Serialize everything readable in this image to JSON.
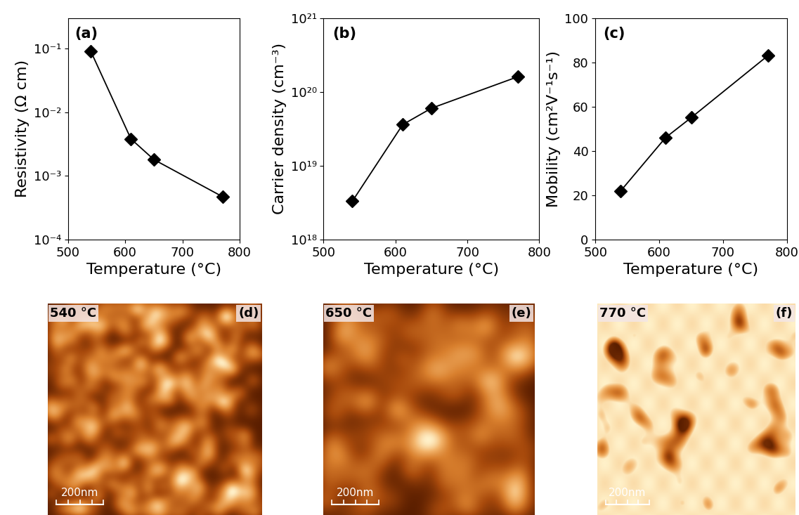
{
  "chart_data": [
    {
      "type": "line",
      "title": "(a)",
      "x_label": "Temperature (°C)",
      "y_label": "Resistivity (Ω cm)",
      "x": [
        540,
        610,
        650,
        770
      ],
      "values": [
        0.09,
        0.0038,
        0.0018,
        0.00047
      ],
      "color": "#000000",
      "marker": "diamond",
      "line_style": "solid",
      "log": "y",
      "xlim": [
        500,
        800
      ],
      "xticks": [
        500,
        600,
        700,
        800
      ],
      "ylim": [
        0.0001,
        0.3
      ],
      "yticks": [
        {
          "value": 0.0001,
          "label": "10⁻⁴"
        },
        {
          "value": 0.001,
          "label": "10⁻³"
        },
        {
          "value": 0.01,
          "label": "10⁻²"
        },
        {
          "value": 0.1,
          "label": "10⁻¹"
        }
      ]
    },
    {
      "type": "line",
      "title": "(b)",
      "x_label": "Temperature (°C)",
      "y_label": "Carrier density (cm⁻³)",
      "x": [
        540,
        610,
        650,
        770
      ],
      "values": [
        3.3e+18,
        3.6e+19,
        6e+19,
        1.6e+20
      ],
      "color": "#000000",
      "marker": "diamond",
      "line_style": "solid",
      "log": "y",
      "xlim": [
        500,
        800
      ],
      "xticks": [
        500,
        600,
        700,
        800
      ],
      "ylim": [
        1e+18,
        1e+21
      ],
      "yticks": [
        {
          "value": 1e+18,
          "label": "10¹⁸"
        },
        {
          "value": 1e+19,
          "label": "10¹⁹"
        },
        {
          "value": 1e+20,
          "label": "10²⁰"
        },
        {
          "value": 1e+21,
          "label": "10²¹"
        }
      ]
    },
    {
      "type": "line",
      "title": "(c)",
      "x_label": "Temperature (°C)",
      "y_label": "Mobility (cm²V⁻¹s⁻¹)",
      "x": [
        540,
        610,
        650,
        770
      ],
      "values": [
        22,
        46,
        55,
        83
      ],
      "color": "#000000",
      "marker": "diamond",
      "line_style": "solid",
      "xlim": [
        500,
        800
      ],
      "xticks": [
        500,
        600,
        700,
        800
      ],
      "ylim": [
        0,
        100
      ],
      "yticks": [
        0,
        20,
        40,
        60,
        80,
        100
      ]
    }
  ],
  "images": [
    {
      "label": "(d)",
      "temperature": "540 °C",
      "scale_bar": "200nm"
    },
    {
      "label": "(e)",
      "temperature": "650 °C",
      "scale_bar": "200nm"
    },
    {
      "label": "(f)",
      "temperature": "770 °C",
      "scale_bar": "200nm"
    }
  ]
}
